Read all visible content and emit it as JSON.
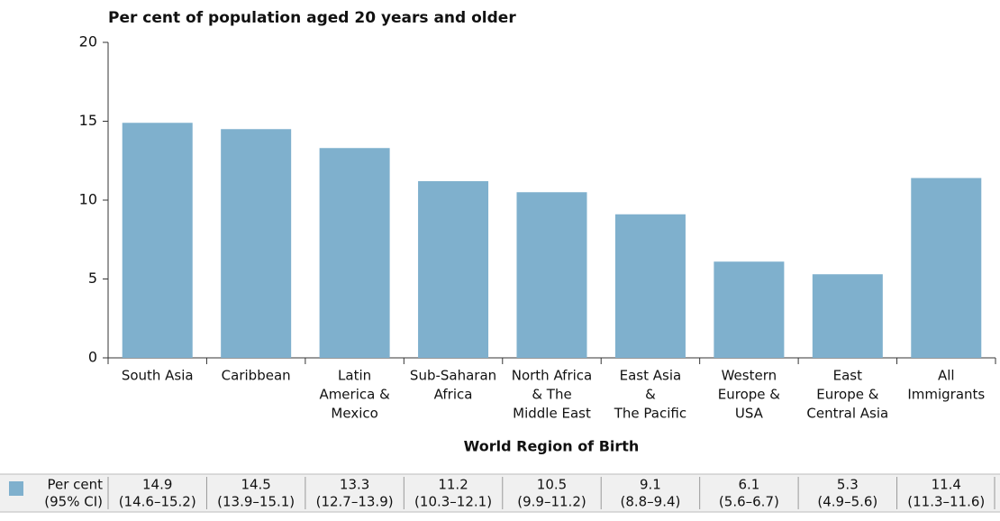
{
  "chart_data": {
    "type": "bar",
    "title": "Per cent of population aged 20 years and older",
    "x_label": "World Region of Birth",
    "categories": [
      [
        "South Asia"
      ],
      [
        "Caribbean"
      ],
      [
        "Latin",
        "America &",
        "Mexico"
      ],
      [
        "Sub-Saharan",
        "Africa"
      ],
      [
        "North Africa",
        "& The",
        "Middle East"
      ],
      [
        "East Asia",
        "&",
        "The Pacific"
      ],
      [
        "Western",
        "Europe &",
        "USA"
      ],
      [
        "East",
        "Europe &",
        "Central Asia"
      ],
      [
        "All",
        "Immigrants"
      ]
    ],
    "series": [
      {
        "name": [
          "Per cent",
          "(95% CI)"
        ],
        "color": "#7fb0cd",
        "values": [
          14.9,
          14.5,
          13.3,
          11.2,
          10.5,
          9.1,
          6.1,
          5.3,
          11.4
        ],
        "ci_labels": [
          "(14.6–15.2)",
          "(13.9–15.1)",
          "(12.7–13.9)",
          "(10.3–12.1)",
          "(9.9–11.2)",
          "(8.8–9.4)",
          "(5.6–6.7)",
          "(4.9–5.6)",
          "(11.3–11.6)"
        ]
      }
    ],
    "ylim": [
      0,
      20
    ],
    "yticks": [
      0,
      5,
      10,
      15,
      20
    ]
  }
}
